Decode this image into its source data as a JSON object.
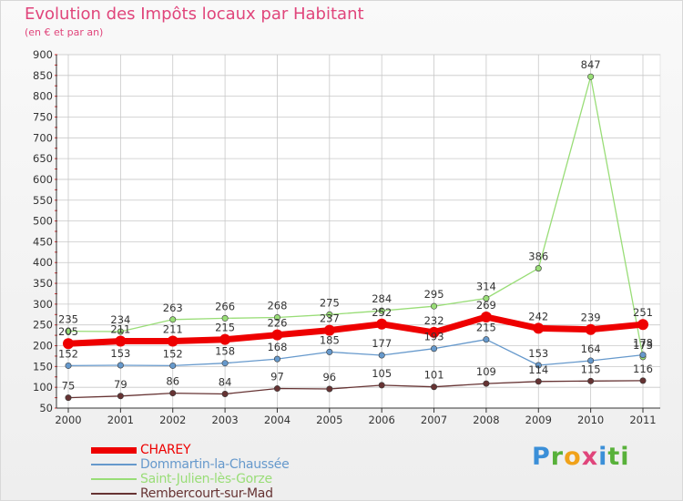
{
  "header": {
    "title": "Evolution des Impôts locaux par Habitant",
    "subtitle": "(en € et par an)"
  },
  "brand": {
    "letters": [
      "P",
      "r",
      "o",
      "x",
      "i",
      "ti"
    ]
  },
  "colors": {
    "CHAREY": "#ee0000",
    "Dommartin": "#6699cc",
    "SaintJulien": "#99dd77",
    "Rembercourt": "#663333",
    "grid": "#c8c8c8",
    "axis": "#333333"
  },
  "chart_data": {
    "type": "line",
    "title": "Evolution des Impôts locaux par Habitant",
    "subtitle": "(en € et par an)",
    "xlabel": "",
    "ylabel": "",
    "ylim": [
      50,
      900
    ],
    "yticks": [
      50,
      100,
      150,
      200,
      250,
      300,
      350,
      400,
      450,
      500,
      550,
      600,
      650,
      700,
      750,
      800,
      850,
      900
    ],
    "grid": true,
    "categories": [
      "2000",
      "2001",
      "2002",
      "2003",
      "2004",
      "2005",
      "2006",
      "2007",
      "2008",
      "2009",
      "2010",
      "2011"
    ],
    "series": [
      {
        "name": "CHAREY",
        "values": [
          205,
          211,
          211,
          215,
          226,
          237,
          252,
          232,
          269,
          242,
          239,
          251
        ]
      },
      {
        "name": "Dommartin-la-Chaussée",
        "values": [
          152,
          153,
          152,
          158,
          168,
          185,
          177,
          193,
          215,
          153,
          164,
          178
        ]
      },
      {
        "name": "Saint-Julien-lès-Gorze",
        "values": [
          235,
          234,
          263,
          266,
          268,
          275,
          284,
          295,
          314,
          386,
          847,
          173
        ]
      },
      {
        "name": "Rembercourt-sur-Mad",
        "values": [
          75,
          79,
          86,
          84,
          97,
          96,
          105,
          101,
          109,
          114,
          115,
          116
        ]
      }
    ],
    "legend": [
      {
        "label": "CHAREY"
      },
      {
        "label": "Dommartin-la-Chaussée"
      },
      {
        "label": "Saint-Julien-lès-Gorze"
      },
      {
        "label": "Rembercourt-sur-Mad"
      }
    ],
    "legend_position": "bottom-left"
  }
}
